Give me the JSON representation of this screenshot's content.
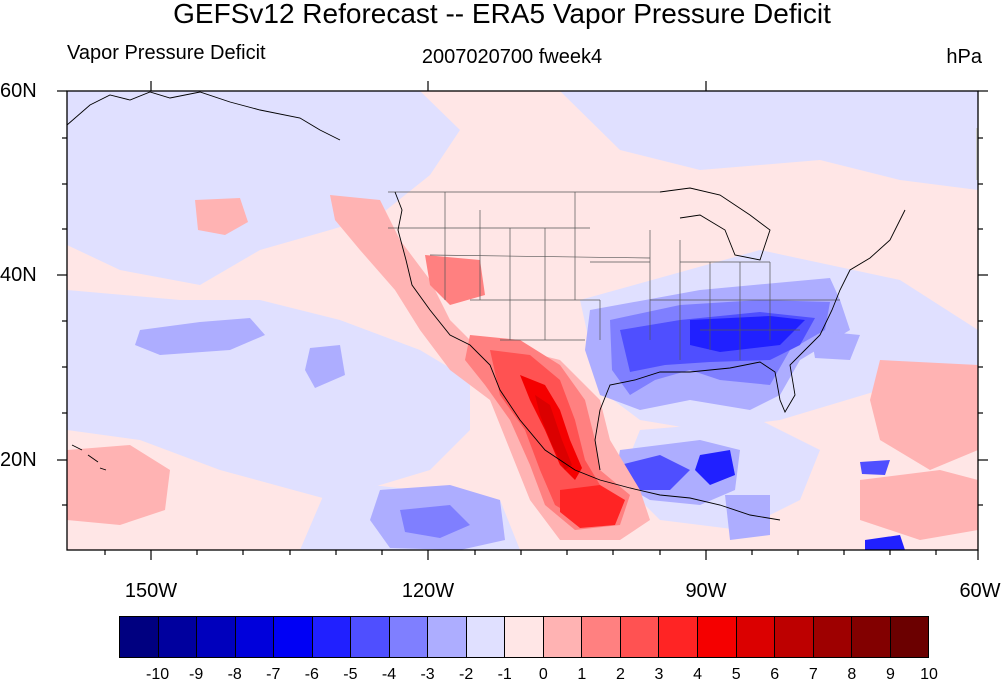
{
  "title": "GEFSv12 Reforecast -- ERA5 Vapor Pressure Deficit",
  "left_label": "Vapor Pressure Deficit",
  "center_label": "2007020700 fweek4",
  "right_label": "hPa",
  "lat_labels": [
    "60N",
    "40N",
    "20N"
  ],
  "lon_labels": [
    "150W",
    "120W",
    "90W",
    "60W"
  ],
  "colorbar": {
    "colors": [
      "#000080",
      "#00009e",
      "#0000bd",
      "#0000db",
      "#0000f5",
      "#2020ff",
      "#4f4fff",
      "#7f7fff",
      "#adadff",
      "#e0e0ff",
      "#ffe6e6",
      "#ffb3b3",
      "#ff8080",
      "#ff5252",
      "#ff2424",
      "#f50000",
      "#db0000",
      "#bd0000",
      "#9e0000",
      "#820000",
      "#6b0000"
    ],
    "labels": [
      "-10",
      "-9",
      "-8",
      "-7",
      "-6",
      "-5",
      "-4",
      "-3",
      "-2",
      "-1",
      "0",
      "1",
      "2",
      "3",
      "4",
      "5",
      "6",
      "7",
      "8",
      "9",
      "10"
    ]
  }
}
